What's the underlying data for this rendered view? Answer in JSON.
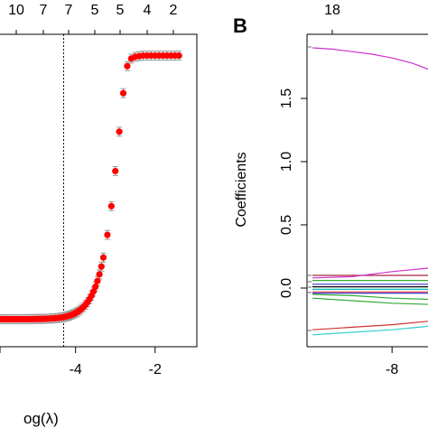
{
  "chart_data": [
    {
      "panel": "A",
      "type": "scatter",
      "title": "",
      "xlabel": "og(λ)",
      "ylabel": "",
      "top_axis_labels": [
        "10",
        "7",
        "7",
        "5",
        "5",
        "4",
        "2"
      ],
      "x_tick_labels": [
        "-4",
        "-2"
      ],
      "xlim": [
        -5.9,
        -1.2
      ],
      "ylim": [
        0.6,
        1.07
      ],
      "vline_x": -4.3,
      "point_color": "#ff0000",
      "errorbar_color": "#999999",
      "series": [
        {
          "x": [
            -5.9,
            -5.85,
            -5.8,
            -5.75,
            -5.7,
            -5.65,
            -5.6,
            -5.55,
            -5.5,
            -5.45,
            -5.4,
            -5.35,
            -5.3,
            -5.25,
            -5.2,
            -5.15,
            -5.1,
            -5.05,
            -5.0,
            -4.95,
            -4.9,
            -4.85,
            -4.8,
            -4.75,
            -4.7,
            -4.65,
            -4.6,
            -4.55,
            -4.5,
            -4.45,
            -4.4,
            -4.35,
            -4.3,
            -4.25,
            -4.2,
            -4.15,
            -4.1,
            -4.05,
            -4.0,
            -3.95,
            -3.9,
            -3.85,
            -3.8,
            -3.75,
            -3.7,
            -3.65,
            -3.6,
            -3.55,
            -3.5,
            -3.45,
            -3.4,
            -3.35,
            -3.3,
            -3.2,
            -3.1,
            -3.0,
            -2.9,
            -2.8,
            -2.7,
            -2.6,
            -2.5,
            -2.4,
            -2.3,
            -2.2,
            -2.1,
            -2.0,
            -1.9,
            -1.8,
            -1.7,
            -1.6,
            -1.5,
            -1.4
          ],
          "y": [
            0.616,
            0.616,
            0.616,
            0.616,
            0.616,
            0.616,
            0.616,
            0.616,
            0.616,
            0.616,
            0.616,
            0.616,
            0.6161,
            0.6161,
            0.6161,
            0.6161,
            0.6162,
            0.6162,
            0.6162,
            0.6163,
            0.6164,
            0.6164,
            0.6165,
            0.6166,
            0.6168,
            0.6169,
            0.6171,
            0.6174,
            0.6177,
            0.618,
            0.6184,
            0.6189,
            0.6195,
            0.6202,
            0.6211,
            0.6221,
            0.6233,
            0.6247,
            0.6264,
            0.6284,
            0.6307,
            0.6334,
            0.6365,
            0.6402,
            0.6446,
            0.6497,
            0.6556,
            0.6626,
            0.6707,
            0.6803,
            0.6915,
            0.7046,
            0.7198,
            0.758,
            0.8064,
            0.8655,
            0.9319,
            0.9967,
            1.0423,
            1.055,
            1.058,
            1.059,
            1.06,
            1.06,
            1.06,
            1.06,
            1.06,
            1.06,
            1.06,
            1.06,
            1.06,
            1.06
          ],
          "err": [
            0.003,
            0.003,
            0.003,
            0.003,
            0.003,
            0.003,
            0.003,
            0.003,
            0.003,
            0.003,
            0.003,
            0.003,
            0.003,
            0.003,
            0.003,
            0.003,
            0.003,
            0.003,
            0.003,
            0.003,
            0.003,
            0.003,
            0.003,
            0.003,
            0.003,
            0.003,
            0.003,
            0.003,
            0.003,
            0.003,
            0.003,
            0.003,
            0.003,
            0.003,
            0.003,
            0.003,
            0.003,
            0.003,
            0.003,
            0.003,
            0.003,
            0.003,
            0.003,
            0.003,
            0.003,
            0.003,
            0.003,
            0.003,
            0.003,
            0.003,
            0.003,
            0.003,
            0.003,
            0.003,
            0.003,
            0.003,
            0.003,
            0.003,
            0.003,
            0.003,
            0.003,
            0.003,
            0.003,
            0.003,
            0.003,
            0.003,
            0.003,
            0.003,
            0.003,
            0.003,
            0.003,
            0.003
          ]
        }
      ]
    },
    {
      "panel": "B",
      "type": "line",
      "title": "",
      "xlabel": "",
      "ylabel": "Coefficients",
      "top_axis_labels": [
        "18"
      ],
      "x_tick_labels": [
        "-8"
      ],
      "y_tick_labels": [
        "0.0",
        "0.5",
        "1.0",
        "1.5"
      ],
      "xlim": [
        -8.8,
        -7.0
      ],
      "ylim": [
        -0.4,
        2.0
      ],
      "series": [
        {
          "color": "#cc33cc",
          "x": [
            -8.8,
            -8.6,
            -8.4,
            -8.2,
            -8.0,
            -7.8,
            -7.6,
            -7.4,
            -7.2,
            -7.0
          ],
          "y": [
            1.9,
            1.89,
            1.87,
            1.85,
            1.82,
            1.78,
            1.72,
            1.65,
            1.58,
            1.5
          ]
        },
        {
          "color": "#aa2244",
          "x": [
            -8.8,
            -8.0,
            -7.0
          ],
          "y": [
            0.1,
            0.1,
            0.1
          ]
        },
        {
          "color": "#cc33cc",
          "x": [
            -8.8,
            -8.4,
            -8.0,
            -7.6,
            -7.2,
            -7.0
          ],
          "y": [
            0.08,
            0.09,
            0.13,
            0.16,
            0.17,
            0.17
          ]
        },
        {
          "color": "#33aa33",
          "x": [
            -8.8,
            -8.0,
            -7.0
          ],
          "y": [
            0.06,
            0.06,
            0.06
          ]
        },
        {
          "color": "#3333cc",
          "x": [
            -8.8,
            -8.0,
            -7.0
          ],
          "y": [
            0.03,
            0.03,
            0.03
          ]
        },
        {
          "color": "#000000",
          "x": [
            -8.8,
            -8.0,
            -7.0
          ],
          "y": [
            0.01,
            0.01,
            0.01
          ]
        },
        {
          "color": "#00bbbb",
          "x": [
            -8.8,
            -8.0,
            -7.0
          ],
          "y": [
            -0.01,
            -0.01,
            -0.01
          ]
        },
        {
          "color": "#ff4444",
          "x": [
            -8.8,
            -8.0,
            -7.0
          ],
          "y": [
            -0.03,
            -0.03,
            -0.03
          ]
        },
        {
          "color": "#33aa33",
          "x": [
            -8.8,
            -8.4,
            -8.0,
            -7.6,
            -7.2,
            -7.0
          ],
          "y": [
            -0.05,
            -0.06,
            -0.08,
            -0.09,
            -0.1,
            -0.1
          ]
        },
        {
          "color": "#3333cc",
          "x": [
            -8.8,
            -8.0,
            -7.0
          ],
          "y": [
            -0.04,
            -0.04,
            -0.04
          ]
        },
        {
          "color": "#33aa33",
          "x": [
            -8.8,
            -8.4,
            -8.0,
            -7.6,
            -7.2,
            -7.0
          ],
          "y": [
            -0.08,
            -0.1,
            -0.12,
            -0.13,
            -0.14,
            -0.14
          ]
        },
        {
          "color": "#cc3333",
          "x": [
            -8.8,
            -8.4,
            -8.0,
            -7.6,
            -7.2,
            -7.0
          ],
          "y": [
            -0.33,
            -0.31,
            -0.29,
            -0.26,
            -0.23,
            -0.21
          ]
        },
        {
          "color": "#33cccc",
          "x": [
            -8.8,
            -8.4,
            -8.0,
            -7.6,
            -7.2,
            -7.0
          ],
          "y": [
            -0.37,
            -0.35,
            -0.33,
            -0.3,
            -0.26,
            -0.23
          ]
        }
      ]
    }
  ],
  "panel_b_letter": "B"
}
